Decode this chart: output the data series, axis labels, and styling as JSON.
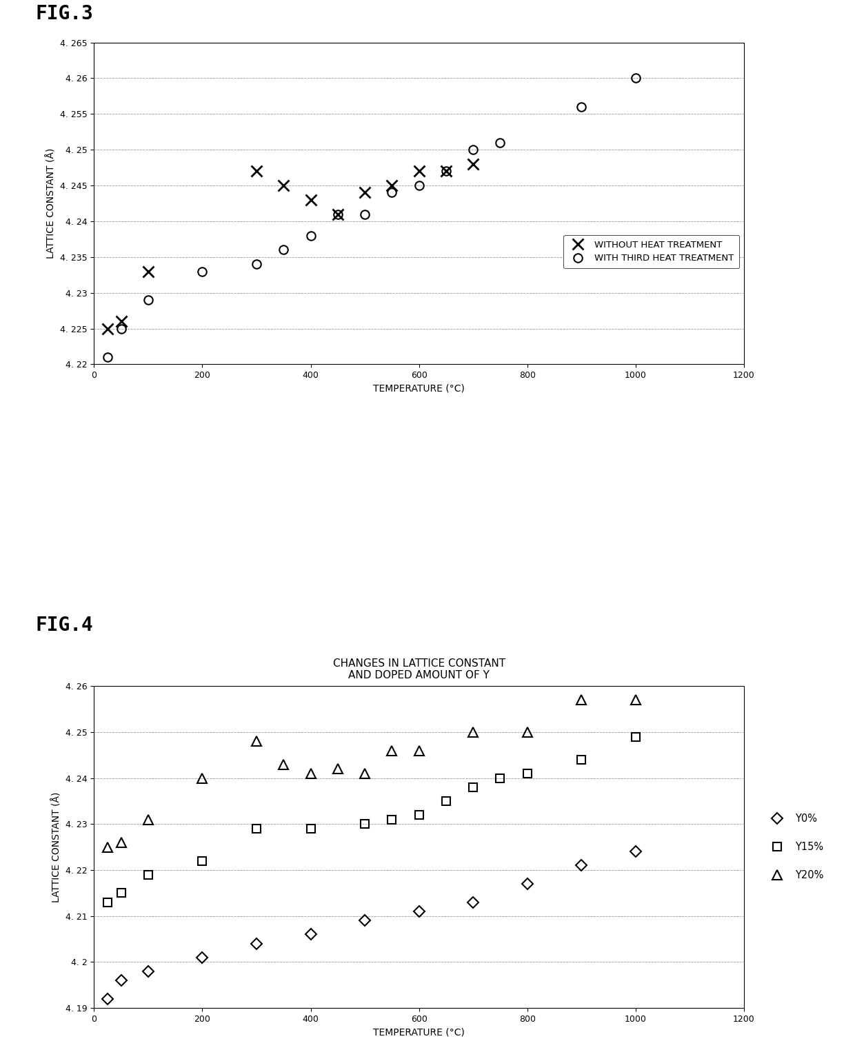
{
  "fig3": {
    "title_label": "FIG.3",
    "xlabel": "TEMPERATURE (°C)",
    "ylabel": "LATTICE CONSTANT (Å)",
    "xlim": [
      0,
      1200
    ],
    "ylim": [
      4.22,
      4.265
    ],
    "yticks": [
      4.22,
      4.225,
      4.23,
      4.235,
      4.24,
      4.245,
      4.25,
      4.255,
      4.26,
      4.265
    ],
    "ytick_labels": [
      "4. 22",
      "4. 225",
      "4. 23",
      "4. 235",
      "4. 24",
      "4. 245",
      "4. 25",
      "4. 255",
      "4. 26",
      "4. 265"
    ],
    "xticks": [
      0,
      200,
      400,
      600,
      800,
      1000,
      1200
    ],
    "series1_label": "WITHOUT HEAT TREATMENT",
    "series1_x": [
      25,
      50,
      100,
      300,
      350,
      400,
      450,
      500,
      550,
      600,
      650,
      700
    ],
    "series1_y": [
      4.225,
      4.226,
      4.233,
      4.247,
      4.245,
      4.243,
      4.241,
      4.244,
      4.245,
      4.247,
      4.247,
      4.248
    ],
    "series2_label": "WITH THIRD HEAT TREATMENT",
    "series2_x": [
      25,
      50,
      100,
      200,
      300,
      350,
      400,
      450,
      500,
      550,
      600,
      650,
      700,
      750,
      900,
      1000
    ],
    "series2_y": [
      4.221,
      4.225,
      4.229,
      4.233,
      4.234,
      4.236,
      4.238,
      4.241,
      4.241,
      4.244,
      4.245,
      4.247,
      4.25,
      4.251,
      4.256,
      4.26
    ]
  },
  "fig4": {
    "title_label": "FIG.4",
    "title": "CHANGES IN LATTICE CONSTANT\nAND DOPED AMOUNT OF Y",
    "xlabel": "TEMPERATURE (°C)",
    "ylabel": "LATTICE CONSTANT (Å)",
    "xlim": [
      0,
      1200
    ],
    "ylim": [
      4.19,
      4.26
    ],
    "yticks": [
      4.19,
      4.2,
      4.21,
      4.22,
      4.23,
      4.24,
      4.25,
      4.26
    ],
    "ytick_labels": [
      "4. 19",
      "4. 2",
      "4. 21",
      "4. 22",
      "4. 23",
      "4. 24",
      "4. 25",
      "4. 26"
    ],
    "xticks": [
      0,
      200,
      400,
      600,
      800,
      1000,
      1200
    ],
    "series1_label": "Y0%",
    "series1_x": [
      25,
      50,
      100,
      200,
      300,
      400,
      500,
      600,
      700,
      800,
      900,
      1000
    ],
    "series1_y": [
      4.192,
      4.196,
      4.198,
      4.201,
      4.204,
      4.206,
      4.209,
      4.211,
      4.213,
      4.217,
      4.221,
      4.224
    ],
    "series2_label": "Y15%",
    "series2_x": [
      25,
      50,
      100,
      200,
      300,
      400,
      500,
      550,
      600,
      650,
      700,
      750,
      800,
      900,
      1000
    ],
    "series2_y": [
      4.213,
      4.215,
      4.219,
      4.222,
      4.229,
      4.229,
      4.23,
      4.231,
      4.232,
      4.235,
      4.238,
      4.24,
      4.241,
      4.244,
      4.249
    ],
    "series3_label": "Y20%",
    "series3_x": [
      25,
      50,
      100,
      200,
      300,
      350,
      400,
      450,
      500,
      550,
      600,
      700,
      800,
      900,
      1000
    ],
    "series3_y": [
      4.225,
      4.226,
      4.231,
      4.24,
      4.248,
      4.243,
      4.241,
      4.242,
      4.241,
      4.246,
      4.246,
      4.25,
      4.25,
      4.257,
      4.257
    ]
  }
}
